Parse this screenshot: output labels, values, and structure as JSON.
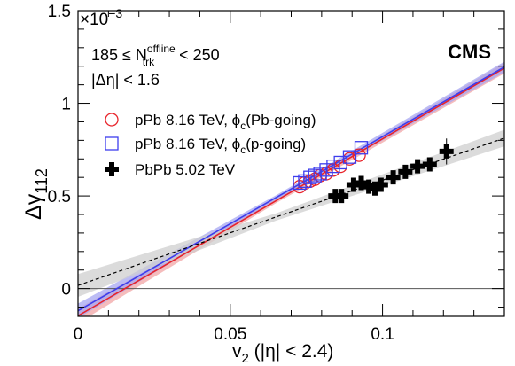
{
  "chart_data": {
    "type": "scatter",
    "title": "",
    "xlabel": "v",
    "xlabel_sub": "2",
    "xlabel_suffix": " (|η| < 2.4)",
    "ylabel": "Δγ",
    "ylabel_sub": "112",
    "y_multiplier": "×10",
    "y_multiplier_exp": "−3",
    "xlim": [
      0,
      0.14
    ],
    "ylim": [
      -0.15,
      1.5
    ],
    "xticks": [
      0,
      0.05,
      0.1
    ],
    "xtick_labels": [
      "0",
      "0.05",
      "0.1"
    ],
    "yticks": [
      0,
      0.5,
      1,
      1.5
    ],
    "ytick_labels": [
      "0",
      "0.5",
      "1",
      "1.5"
    ],
    "zero_line": true,
    "grid": false,
    "legend_position": "upper-left",
    "brand": "CMS",
    "annotations": [
      {
        "text": "185 ≤ N",
        "sup": "offline",
        "sub": "trk",
        "suffix": " < 250"
      },
      {
        "text": "|Δη| < 1.6"
      }
    ],
    "series": [
      {
        "name": "pPb 8.16 TeV, ϕ",
        "name_sub": "c",
        "name_suffix": "(Pb-going)",
        "marker": "open-circle",
        "color": "#e8232a",
        "x": [
          0.0728,
          0.0745,
          0.0762,
          0.0778,
          0.0795,
          0.0815,
          0.0838,
          0.0862,
          0.0892,
          0.0923
        ],
        "y": [
          0.55,
          0.57,
          0.58,
          0.59,
          0.61,
          0.62,
          0.64,
          0.66,
          0.7,
          0.72
        ]
      },
      {
        "name": "pPb 8.16 TeV, ϕ",
        "name_sub": "c",
        "name_suffix": "(p-going)",
        "marker": "open-square",
        "color": "#3d3ded",
        "x": [
          0.0728,
          0.0745,
          0.0762,
          0.0778,
          0.0795,
          0.0815,
          0.0838,
          0.0862,
          0.0892,
          0.093
        ],
        "y": [
          0.57,
          0.58,
          0.6,
          0.61,
          0.62,
          0.64,
          0.66,
          0.68,
          0.71,
          0.76
        ]
      },
      {
        "name": "PbPb 5.02 TeV",
        "marker": "filled-cross",
        "color": "#000000",
        "x": [
          0.0845,
          0.0865,
          0.0905,
          0.093,
          0.0955,
          0.0975,
          0.0995,
          0.1035,
          0.1075,
          0.1115,
          0.1155,
          0.121
        ],
        "y": [
          0.5,
          0.5,
          0.56,
          0.57,
          0.55,
          0.54,
          0.56,
          0.6,
          0.63,
          0.66,
          0.67,
          0.74
        ],
        "yerr": [
          0.02,
          0.02,
          0.02,
          0.02,
          0.02,
          0.02,
          0.02,
          0.02,
          0.02,
          0.03,
          0.03,
          0.07
        ]
      }
    ],
    "fits": [
      {
        "series": "Pb-going",
        "color": "#e8232a",
        "style": "solid",
        "band_color": "#f2a6a6",
        "intercept": -0.147,
        "slope": 9.55,
        "band_halfwidth": 0.018
      },
      {
        "series": "p-going",
        "color": "#3d3ded",
        "style": "solid",
        "band_color": "#a6a6f2",
        "intercept": -0.12,
        "slope": 9.4,
        "band_halfwidth": 0.018
      },
      {
        "series": "PbPb",
        "color": "#000000",
        "style": "dashed",
        "band_color": "#cfcfcf",
        "intercept": 0.017,
        "slope": 5.68,
        "band_halfwidth": 0.028
      }
    ]
  }
}
